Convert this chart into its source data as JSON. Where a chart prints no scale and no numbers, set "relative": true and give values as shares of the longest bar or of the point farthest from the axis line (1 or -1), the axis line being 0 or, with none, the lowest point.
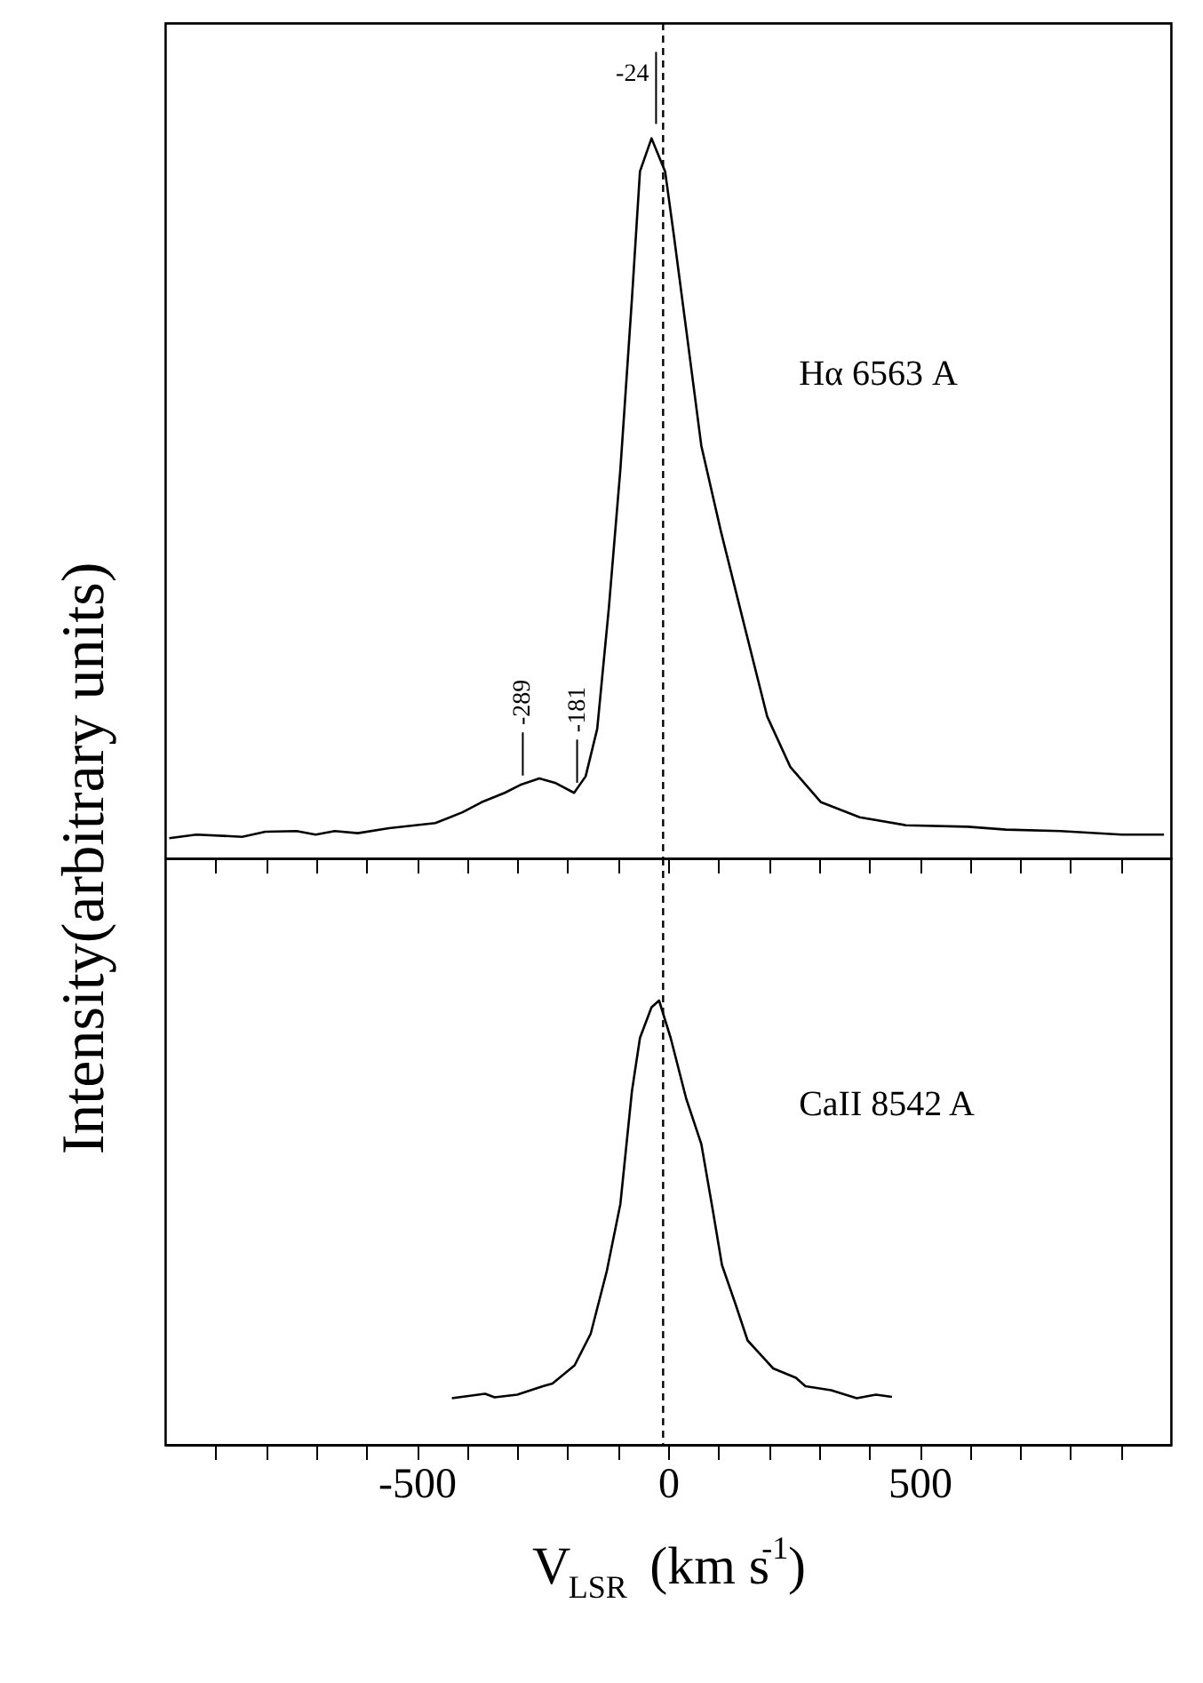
{
  "chart_data": [
    {
      "type": "line",
      "relative": true,
      "ylabel": "Intensity(arbitrary units)",
      "tick_labels": false,
      "marker": "none",
      "line_style": "solid",
      "xlim": [
        -1000,
        1000
      ],
      "xticks": [
        {
          "value": -900,
          "label": null
        },
        {
          "value": -800,
          "label": null
        },
        {
          "value": -700,
          "label": null
        },
        {
          "value": -600,
          "label": null
        },
        -500,
        {
          "value": -400,
          "label": null
        },
        {
          "value": -300,
          "label": null
        },
        {
          "value": -200,
          "label": null
        },
        {
          "value": -100,
          "label": null
        },
        0,
        {
          "value": 100,
          "label": null
        },
        {
          "value": 200,
          "label": null
        },
        {
          "value": 300,
          "label": null
        },
        {
          "value": 400,
          "label": null
        },
        500,
        {
          "value": 600,
          "label": null
        },
        {
          "value": 700,
          "label": null
        },
        {
          "value": 800,
          "label": null
        },
        {
          "value": 900,
          "label": null
        }
      ],
      "series": [
        {
          "color": "#000000",
          "x": [
            -992,
            -938,
            -847,
            -801,
            -739,
            -701,
            -663,
            -617,
            -555,
            -463,
            -409,
            -371,
            -325,
            -294,
            -256,
            -225,
            -187,
            -164,
            -141,
            -118,
            -95,
            -72,
            -56,
            -33,
            -6,
            12,
            36,
            66,
            105,
            151,
            197,
            243,
            304,
            381,
            473,
            596,
            672,
            780,
            902,
            986
          ],
          "values": [
            0.028,
            0.033,
            0.03,
            0.037,
            0.038,
            0.033,
            0.038,
            0.035,
            0.042,
            0.049,
            0.064,
            0.078,
            0.091,
            0.102,
            0.111,
            0.105,
            0.091,
            0.114,
            0.18,
            0.347,
            0.54,
            0.777,
            0.954,
            1,
            0.954,
            0.862,
            0.734,
            0.573,
            0.454,
            0.325,
            0.197,
            0.127,
            0.078,
            0.057,
            0.046,
            0.044,
            0.04,
            0.038,
            0.033,
            0.033
          ]
        }
      ],
      "ref_lines": [
        {
          "axis": "x",
          "value": -10,
          "line_style": "dashed",
          "color": "#000000"
        }
      ],
      "annotations": [
        {
          "text": "-24",
          "x": -24,
          "y": 1
        },
        {
          "text": "-289",
          "x": -289,
          "y": 0.1
        },
        {
          "text": "-181",
          "x": -181,
          "y": 0.09
        },
        "Hα 6563 A"
      ]
    },
    {
      "type": "line",
      "relative": true,
      "xlabel": "V$_{LSR}$ (km s$^{-1}$)",
      "tick_labels": "x",
      "marker": "none",
      "line_style": "solid",
      "xlim": [
        -1000,
        1000
      ],
      "xticks": [
        {
          "value": -900,
          "label": null
        },
        {
          "value": -800,
          "label": null
        },
        {
          "value": -700,
          "label": null
        },
        {
          "value": -600,
          "label": null
        },
        -500,
        {
          "value": -400,
          "label": null
        },
        {
          "value": -300,
          "label": null
        },
        {
          "value": -200,
          "label": null
        },
        {
          "value": -100,
          "label": null
        },
        0,
        {
          "value": 100,
          "label": null
        },
        {
          "value": 200,
          "label": null
        },
        {
          "value": 300,
          "label": null
        },
        {
          "value": 400,
          "label": null
        },
        500,
        {
          "value": 600,
          "label": null
        },
        {
          "value": 700,
          "label": null
        },
        {
          "value": 800,
          "label": null
        },
        {
          "value": 900,
          "label": null
        }
      ],
      "series": [
        {
          "color": "#000000",
          "x": [
            -430,
            -364,
            -345,
            -300,
            -249,
            -230,
            -186,
            -154,
            -122,
            -95,
            -72,
            -56,
            -33,
            -18,
            5,
            36,
            66,
            89,
            107,
            133,
            158,
            209,
            254,
            273,
            324,
            375,
            413,
            445
          ],
          "values": [
            0.105,
            0.115,
            0.107,
            0.113,
            0.132,
            0.138,
            0.179,
            0.25,
            0.391,
            0.542,
            0.796,
            0.916,
            0.985,
            1,
            0.916,
            0.779,
            0.677,
            0.527,
            0.405,
            0.32,
            0.235,
            0.172,
            0.151,
            0.132,
            0.123,
            0.105,
            0.113,
            0.108
          ]
        }
      ],
      "ref_lines": [
        {
          "axis": "x",
          "value": -10,
          "line_style": "dashed",
          "color": "#000000"
        }
      ],
      "annotations": [
        "CaII 8542 A"
      ]
    }
  ]
}
